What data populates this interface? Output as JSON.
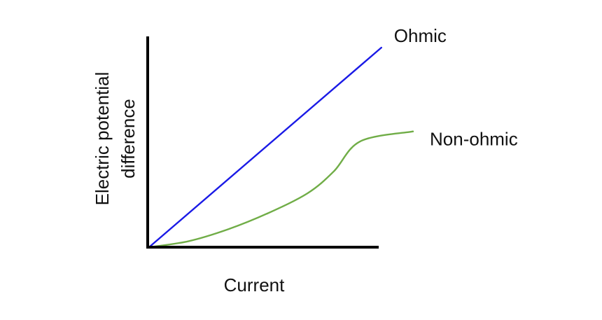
{
  "chart_data": {
    "type": "line",
    "title": "",
    "xlabel": "Current",
    "ylabel_lines": [
      "Electric potential",
      "difference"
    ],
    "xlim": [
      0,
      1
    ],
    "ylim": [
      0,
      1
    ],
    "grid": false,
    "legend": "inline labels at line ends",
    "series": [
      {
        "name": "Ohmic",
        "color": "#1a1ae6",
        "x": [
          0,
          0.88
        ],
        "y": [
          0,
          1.0
        ]
      },
      {
        "name": "Non-ohmic",
        "color": "#70ad47",
        "x": [
          0,
          0.15,
          0.3,
          0.45,
          0.6,
          0.7,
          0.8,
          1.0
        ],
        "y": [
          0,
          0.03,
          0.09,
          0.17,
          0.27,
          0.38,
          0.53,
          0.58
        ]
      }
    ]
  }
}
